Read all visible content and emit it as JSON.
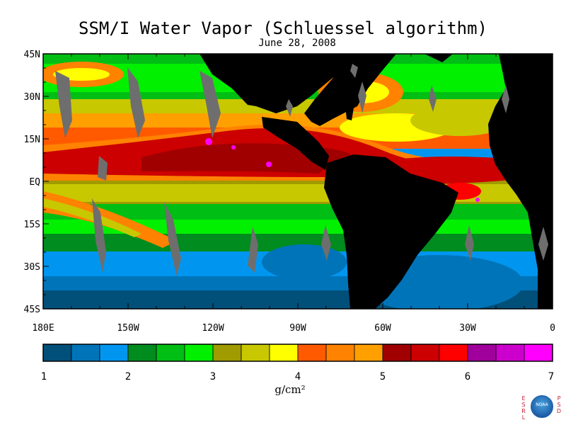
{
  "title": "SSM/I Water Vapor (Schluessel algorithm)",
  "subtitle": "June 28, 2008",
  "map": {
    "lat_labels": [
      "45N",
      "30N",
      "15N",
      "EQ",
      "15S",
      "30S",
      "45S"
    ],
    "lon_labels": [
      "180E",
      "150W",
      "120W",
      "90W",
      "60W",
      "30W",
      "0"
    ],
    "region": {
      "lon_min": -180,
      "lon_max": 0,
      "lat_min": -45,
      "lat_max": 45
    },
    "land_color": "#000000",
    "swath_gap_color": "#6e6e6e"
  },
  "colorbar": {
    "units": "g/cm²",
    "tick_labels": [
      "1",
      "2",
      "3",
      "4",
      "5",
      "6",
      "7"
    ],
    "colors": [
      "#00507a",
      "#0074b8",
      "#0096f0",
      "#008c1e",
      "#00be14",
      "#00f000",
      "#a09b00",
      "#c8c800",
      "#ffff00",
      "#ff5a00",
      "#ff8200",
      "#ffa000",
      "#a00000",
      "#cc0000",
      "#ff0000",
      "#a0009b",
      "#cc00cc",
      "#ff00ff"
    ]
  },
  "logo": {
    "left_letters": "ESRL",
    "right_letters": "PSD",
    "emblem": "NOAA"
  }
}
